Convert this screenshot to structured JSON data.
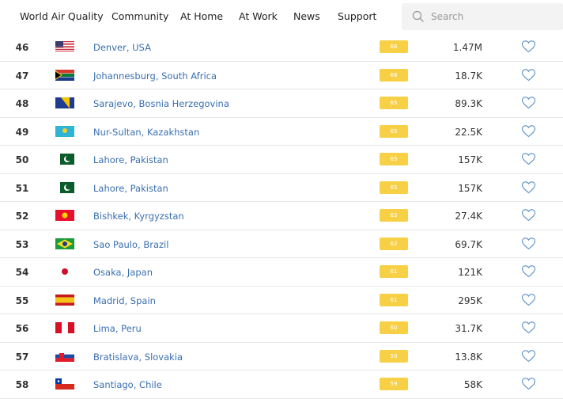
{
  "nav": {
    "items": [
      "World Air Quality",
      "Community",
      "At Home",
      "At Work",
      "News",
      "Support"
    ],
    "search_placeholder": "Search"
  },
  "table": {
    "rows": [
      [
        46,
        "Denver, USA",
        66,
        "1.47M"
      ],
      [
        47,
        "Johannesburg, South Africa",
        66,
        "18.7K"
      ],
      [
        48,
        "Sarajevo, Bosnia Herzegovina",
        65,
        "89.3K"
      ],
      [
        49,
        "Nur-Sultan, Kazakhstan",
        65,
        "22.5K"
      ],
      [
        50,
        "Lahore, Pakistan",
        65,
        "157K"
      ],
      [
        51,
        "Lahore, Pakistan",
        65,
        "157K"
      ],
      [
        52,
        "Bishkek, Kyrgyzstan",
        63,
        "27.4K"
      ],
      [
        53,
        "Sao Paulo, Brazil",
        62,
        "69.7K"
      ],
      [
        54,
        "Osaka, Japan",
        61,
        "121K"
      ],
      [
        55,
        "Madrid, Spain",
        61,
        "295K"
      ],
      [
        56,
        "Lima, Peru",
        60,
        "31.7K"
      ],
      [
        57,
        "Bratislava, Slovakia",
        59,
        "13.8K"
      ],
      [
        58,
        "Santiago, Chile",
        59,
        "58K"
      ]
    ]
  }
}
